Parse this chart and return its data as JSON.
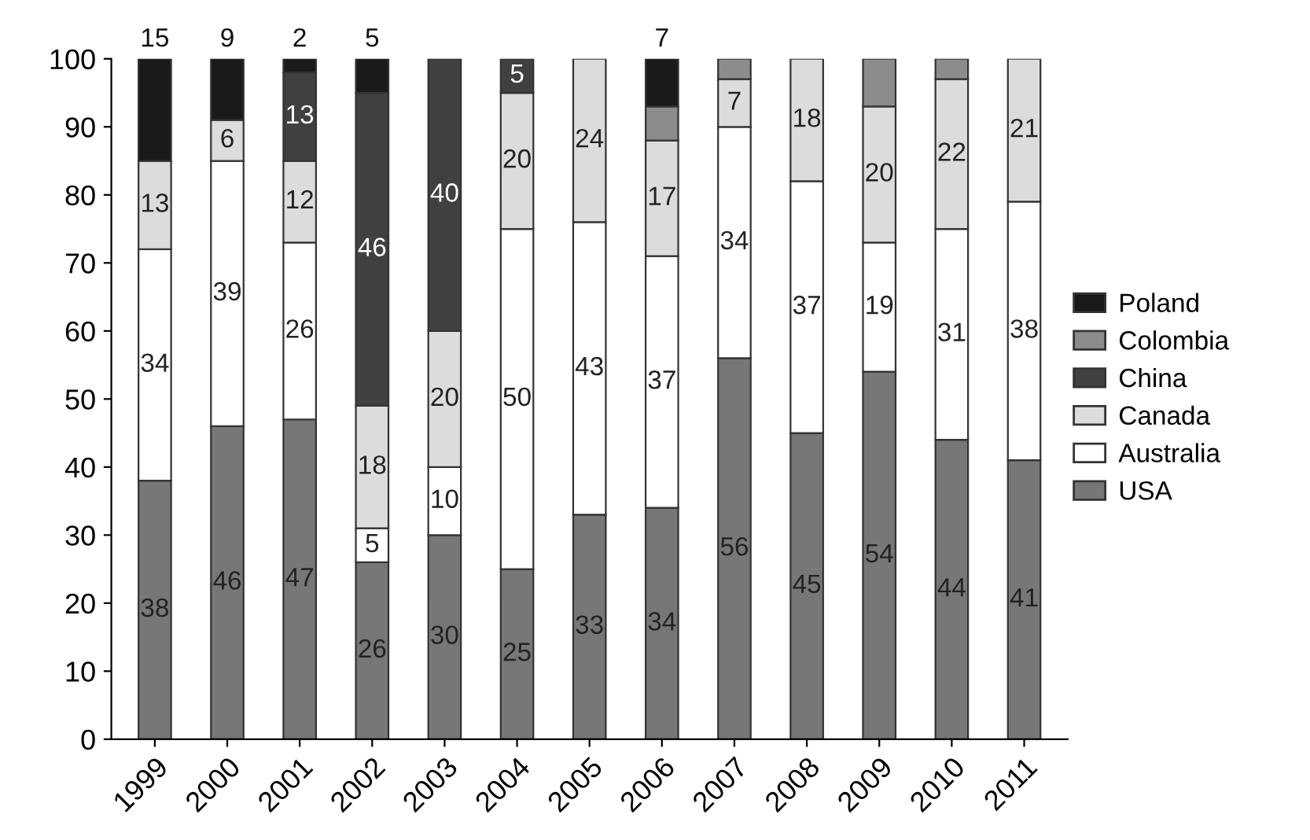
{
  "chart_data": {
    "type": "bar",
    "stacked": true,
    "categories": [
      "1999",
      "2000",
      "2001",
      "2002",
      "2003",
      "2004",
      "2005",
      "2006",
      "2007",
      "2008",
      "2009",
      "2010",
      "2011"
    ],
    "series": [
      {
        "name": "USA",
        "color": "#777777",
        "values": [
          38,
          46,
          47,
          26,
          30,
          25,
          33,
          34,
          56,
          45,
          54,
          44,
          41
        ],
        "value_labels": [
          "38",
          "46",
          "47",
          "26",
          "30",
          "25",
          "33",
          "34",
          "56",
          "45",
          "54",
          "44",
          "41"
        ]
      },
      {
        "name": "Australia",
        "color": "#ffffff",
        "values": [
          34,
          39,
          26,
          5,
          10,
          50,
          43,
          37,
          34,
          37,
          19,
          31,
          38
        ],
        "value_labels": [
          "34",
          "39",
          "26",
          "5",
          "10",
          "50",
          "43",
          "37",
          "34",
          "37",
          "19",
          "31",
          "38"
        ]
      },
      {
        "name": "Canada",
        "color": "#dcdcdc",
        "values": [
          13,
          6,
          12,
          18,
          20,
          20,
          24,
          17,
          7,
          18,
          20,
          22,
          21
        ],
        "value_labels": [
          "13",
          "6",
          "12",
          "18",
          "20",
          "20",
          "24",
          "17",
          "7",
          "18",
          "20",
          "22",
          "21"
        ]
      },
      {
        "name": "China",
        "color": "#404040",
        "values": [
          null,
          null,
          13,
          46,
          40,
          5,
          null,
          null,
          null,
          null,
          null,
          null,
          null
        ],
        "value_labels": [
          null,
          null,
          "13",
          "46",
          "40",
          "5",
          null,
          null,
          null,
          null,
          null,
          null,
          null
        ]
      },
      {
        "name": "Colombia",
        "color": "#8c8c8c",
        "values": [
          null,
          null,
          null,
          null,
          null,
          null,
          null,
          5,
          3,
          null,
          7,
          3,
          null
        ]
      },
      {
        "name": "Poland",
        "color": "#1a1a1a",
        "values": [
          15,
          9,
          2,
          5,
          null,
          null,
          null,
          7,
          null,
          null,
          null,
          null,
          null
        ],
        "value_labels": [
          "15",
          "9",
          "2",
          "5",
          null,
          null,
          null,
          "7",
          null,
          null,
          null,
          null,
          null
        ]
      }
    ],
    "ylim": [
      0,
      100
    ],
    "yticks": [
      0,
      10,
      20,
      30,
      40,
      50,
      60,
      70,
      80,
      90,
      100
    ],
    "legend": "right",
    "grid": false
  }
}
